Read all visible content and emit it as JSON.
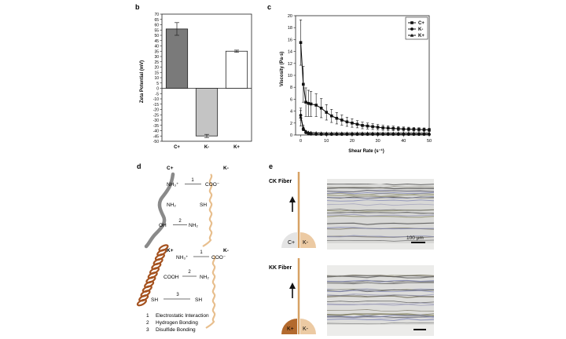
{
  "panels": {
    "b": "b",
    "c": "c",
    "d": "d",
    "e": "e"
  },
  "chart_data": [
    {
      "type": "bar",
      "panel": "b",
      "categories": [
        "C+",
        "K-",
        "K+"
      ],
      "values": [
        56,
        -45,
        35
      ],
      "errors": [
        6,
        1.5,
        1
      ],
      "bar_colors": [
        "#7a7a7a",
        "#c4c4c4",
        "#ffffff"
      ],
      "ylabel": "Zeta Potential (mV)",
      "ylim": [
        -50,
        70
      ],
      "yticks": [
        -50,
        -45,
        -40,
        -35,
        -30,
        -25,
        -20,
        -15,
        -10,
        -5,
        0,
        5,
        10,
        15,
        20,
        25,
        30,
        35,
        40,
        45,
        50,
        55,
        60,
        65,
        70
      ]
    },
    {
      "type": "line",
      "panel": "c",
      "xlabel": "Shear Rate (s⁻¹)",
      "ylabel": "Viscosity (Pa·s)",
      "xlim": [
        -2,
        50
      ],
      "ylim": [
        0,
        20
      ],
      "xticks": [
        0,
        10,
        20,
        30,
        40,
        50
      ],
      "yticks": [
        0,
        2,
        4,
        6,
        8,
        10,
        12,
        14,
        16,
        18,
        20
      ],
      "legend_position": "top-right",
      "series": [
        {
          "name": "C+",
          "marker": "square",
          "x": [
            0,
            1,
            2,
            3,
            4,
            6,
            8,
            10,
            12,
            14,
            16,
            18,
            20,
            22,
            24,
            26,
            28,
            30,
            32,
            34,
            36,
            38,
            40,
            42,
            44,
            46,
            48,
            50
          ],
          "y": [
            15.5,
            8.5,
            5.5,
            5.3,
            5.2,
            5.0,
            4.5,
            3.8,
            3.2,
            2.8,
            2.5,
            2.2,
            2.0,
            1.8,
            1.6,
            1.5,
            1.4,
            1.3,
            1.2,
            1.15,
            1.1,
            1.05,
            1.0,
            0.98,
            0.95,
            0.92,
            0.9,
            0.85
          ],
          "err": [
            3.8,
            3.0,
            2.4,
            2.2,
            2.1,
            1.9,
            1.6,
            1.3,
            1.1,
            0.95,
            0.85,
            0.75,
            0.7,
            0.6,
            0.55,
            0.5,
            0.48,
            0.45,
            0.42,
            0.4,
            0.38,
            0.36,
            0.34,
            0.32,
            0.3,
            0.29,
            0.28,
            0.27
          ]
        },
        {
          "name": "K-",
          "marker": "circle",
          "x": [
            0,
            1,
            2,
            3,
            4,
            6,
            8,
            10,
            12,
            14,
            16,
            18,
            20,
            22,
            24,
            26,
            28,
            30,
            32,
            34,
            36,
            38,
            40,
            42,
            44,
            46,
            48,
            50
          ],
          "y": [
            3.3,
            1.0,
            0.4,
            0.2,
            0.15,
            0.12,
            0.1,
            0.1,
            0.1,
            0.1,
            0.1,
            0.1,
            0.1,
            0.1,
            0.1,
            0.1,
            0.1,
            0.1,
            0.1,
            0.1,
            0.1,
            0.1,
            0.1,
            0.1,
            0.1,
            0.1,
            0.1,
            0.1
          ],
          "err": [
            0.8,
            0.3,
            0.1,
            0.05,
            0.05,
            0.05,
            0.05,
            0.05,
            0.05,
            0.05,
            0.05,
            0.05,
            0.05,
            0.05,
            0.05,
            0.05,
            0.05,
            0.05,
            0.05,
            0.05,
            0.05,
            0.05,
            0.05,
            0.05,
            0.05,
            0.05,
            0.05,
            0.05
          ]
        },
        {
          "name": "K+",
          "marker": "triangle",
          "x": [
            0,
            1,
            2,
            3,
            4,
            6,
            8,
            10,
            12,
            14,
            16,
            18,
            20,
            22,
            24,
            26,
            28,
            30,
            32,
            34,
            36,
            38,
            40,
            42,
            44,
            46,
            48,
            50
          ],
          "y": [
            3.0,
            1.2,
            0.6,
            0.45,
            0.4,
            0.35,
            0.32,
            0.3,
            0.3,
            0.3,
            0.3,
            0.3,
            0.3,
            0.3,
            0.3,
            0.3,
            0.3,
            0.3,
            0.3,
            0.3,
            0.3,
            0.3,
            0.3,
            0.3,
            0.3,
            0.3,
            0.3,
            0.3
          ],
          "err": [
            1.5,
            0.4,
            0.15,
            0.1,
            0.1,
            0.08,
            0.08,
            0.08,
            0.08,
            0.08,
            0.08,
            0.08,
            0.08,
            0.08,
            0.08,
            0.08,
            0.08,
            0.08,
            0.08,
            0.08,
            0.08,
            0.08,
            0.08,
            0.08,
            0.08,
            0.08,
            0.08,
            0.08
          ]
        }
      ]
    }
  ],
  "diagram_d": {
    "top_left_label": "C+",
    "top_right_label": "K-",
    "top_bonds": [
      {
        "left": "NH₃⁺",
        "number": "1",
        "right": "COO⁻"
      },
      {
        "left": "NH₂",
        "right": "SH"
      },
      {
        "left": "OH",
        "number": "2",
        "right": "NH₂"
      }
    ],
    "bottom_left_label": "K+",
    "bottom_right_label": "K-",
    "bottom_bonds": [
      {
        "left": "NH₃⁺",
        "number": "1",
        "right": "COO⁻"
      },
      {
        "left": "COOH",
        "number": "2",
        "right": "NH₂"
      },
      {
        "left": "SH",
        "number": "3",
        "right": "SH"
      }
    ],
    "legend": [
      {
        "number": "1",
        "text": "Electrostatic Interaction"
      },
      {
        "number": "2",
        "text": "Hydrogen Bonding"
      },
      {
        "number": "3",
        "text": "Disulfide Bonding"
      }
    ],
    "colors": {
      "cationic_chitosan": "#8a8a8a",
      "keratin_neg": "#e8bf8e",
      "keratin_pos": "#a5521f"
    }
  },
  "panel_e": {
    "ck_title": "CK Fiber",
    "ck_left_label": "C+",
    "ck_right_label": "K-",
    "kk_title": "KK Fiber",
    "kk_left_label": "K+",
    "kk_right_label": "K-",
    "scale_label": "100 μm",
    "colors": {
      "fiber_line": "#d7a164",
      "c_plus_drop": "#e4e4e4",
      "k_minus_drop": "#eccaa3",
      "k_plus_drop": "#b36a2e"
    }
  }
}
